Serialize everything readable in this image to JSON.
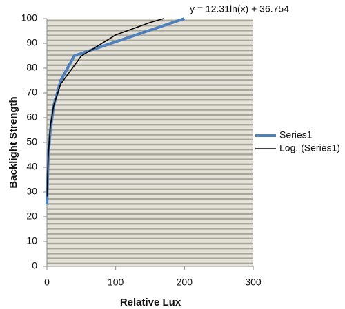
{
  "chart_data": {
    "type": "line",
    "annotation": "y = 12.31ln(x) + 36.754",
    "x_label": "Relative Lux",
    "y_label": "Backlight Strength",
    "xlim": [
      0,
      300
    ],
    "xticks": [
      0,
      100,
      200,
      300
    ],
    "ylim": [
      0,
      100
    ],
    "yticks": [
      0,
      10,
      20,
      30,
      40,
      50,
      60,
      70,
      80,
      90,
      100
    ],
    "legend": "right",
    "series": [
      {
        "name": "Series1",
        "color": "#4f81bd",
        "width": 4,
        "x": [
          0,
          2,
          5,
          10,
          20,
          40,
          200
        ],
        "values": [
          25,
          45,
          55,
          65,
          75,
          85,
          100
        ]
      },
      {
        "name": "Log. (Series1)",
        "color": "#000000",
        "width": 1.6,
        "x": [
          0.5,
          1,
          2,
          5,
          10,
          20,
          50,
          100,
          150,
          170
        ],
        "values": [
          28.2,
          36.8,
          45.3,
          56.6,
          65.1,
          73.6,
          84.9,
          93.4,
          98.4,
          100
        ]
      }
    ]
  }
}
